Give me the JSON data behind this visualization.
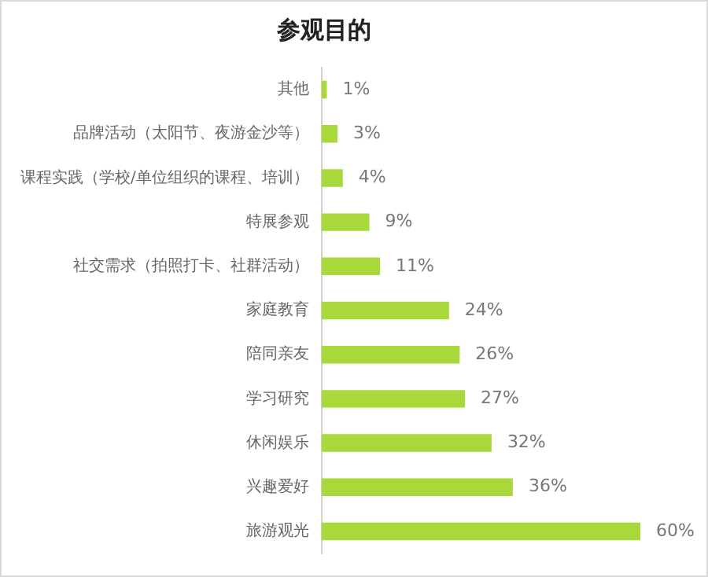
{
  "chart_data": {
    "type": "bar",
    "title": "参观目的",
    "orientation": "horizontal",
    "categories": [
      "其他",
      "品牌活动（太阳节、夜游金沙等）",
      "课程实践（学校/单位组织的课程、培训）",
      "特展参观",
      "社交需求（拍照打卡、社群活动）",
      "家庭教育",
      "陪同亲友",
      "学习研究",
      "休闲娱乐",
      "兴趣爱好",
      "旅游观光"
    ],
    "values": [
      1,
      3,
      4,
      9,
      11,
      24,
      26,
      27,
      32,
      36,
      60
    ],
    "value_labels": [
      "1%",
      "3%",
      "4%",
      "9%",
      "11%",
      "24%",
      "26%",
      "27%",
      "32%",
      "36%",
      "60%"
    ],
    "color": "#a8d83a",
    "tick_labels": "y"
  }
}
